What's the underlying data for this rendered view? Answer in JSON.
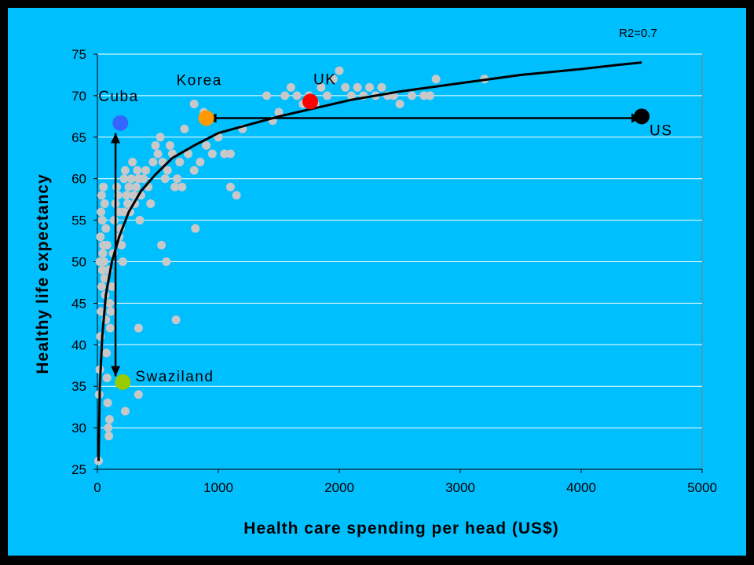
{
  "chart_data": {
    "type": "scatter",
    "title": "",
    "xlabel": "Health care spending per head (US$)",
    "ylabel": "Healthy life expectancy",
    "xlim": [
      0,
      5000
    ],
    "ylim": [
      25,
      75
    ],
    "xticks": [
      0,
      1000,
      2000,
      3000,
      4000,
      5000
    ],
    "yticks": [
      25,
      30,
      35,
      40,
      45,
      50,
      55,
      60,
      65,
      70,
      75
    ],
    "grid": "horizontal",
    "legend": "none",
    "r2_label": "R2=0.7",
    "colors": {
      "background": "#00BFFF",
      "plot_area": "#00BFFF",
      "grid": "#FFFFFF",
      "points": "#C8C8C8",
      "fit_line": "#000000"
    },
    "series": [
      {
        "points": [
          [
            10,
            26
          ],
          [
            15,
            34
          ],
          [
            20,
            37
          ],
          [
            25,
            41
          ],
          [
            30,
            44
          ],
          [
            35,
            47
          ],
          [
            40,
            49
          ],
          [
            45,
            51
          ],
          [
            50,
            52
          ],
          [
            55,
            50
          ],
          [
            60,
            48
          ],
          [
            65,
            46
          ],
          [
            70,
            43
          ],
          [
            75,
            39
          ],
          [
            80,
            36
          ],
          [
            85,
            33
          ],
          [
            90,
            30
          ],
          [
            95,
            29
          ],
          [
            100,
            31
          ],
          [
            105,
            42
          ],
          [
            20,
            50
          ],
          [
            25,
            53
          ],
          [
            30,
            56
          ],
          [
            35,
            58
          ],
          [
            40,
            55
          ],
          [
            50,
            59
          ],
          [
            60,
            57
          ],
          [
            70,
            54
          ],
          [
            80,
            52
          ],
          [
            90,
            49
          ],
          [
            100,
            45
          ],
          [
            110,
            44
          ],
          [
            120,
            47
          ],
          [
            130,
            51
          ],
          [
            140,
            55
          ],
          [
            150,
            57
          ],
          [
            160,
            59
          ],
          [
            170,
            58
          ],
          [
            180,
            56
          ],
          [
            190,
            54
          ],
          [
            200,
            52
          ],
          [
            210,
            50
          ],
          [
            220,
            60
          ],
          [
            230,
            61
          ],
          [
            240,
            58
          ],
          [
            250,
            57
          ],
          [
            260,
            59
          ],
          [
            270,
            56
          ],
          [
            280,
            60
          ],
          [
            290,
            62
          ],
          [
            300,
            58
          ],
          [
            310,
            57
          ],
          [
            320,
            59
          ],
          [
            330,
            61
          ],
          [
            340,
            60
          ],
          [
            350,
            55
          ],
          [
            360,
            58
          ],
          [
            380,
            60
          ],
          [
            400,
            61
          ],
          [
            420,
            59
          ],
          [
            440,
            57
          ],
          [
            460,
            62
          ],
          [
            480,
            64
          ],
          [
            500,
            63
          ],
          [
            520,
            65
          ],
          [
            540,
            62
          ],
          [
            560,
            60
          ],
          [
            580,
            61
          ],
          [
            600,
            64
          ],
          [
            620,
            63
          ],
          [
            640,
            59
          ],
          [
            660,
            60
          ],
          [
            680,
            62
          ],
          [
            700,
            59
          ],
          [
            720,
            66
          ],
          [
            750,
            63
          ],
          [
            800,
            61
          ],
          [
            850,
            62
          ],
          [
            900,
            64
          ],
          [
            950,
            63
          ],
          [
            1000,
            65
          ],
          [
            1050,
            63
          ],
          [
            1100,
            59
          ],
          [
            1150,
            58
          ],
          [
            1200,
            66
          ],
          [
            1400,
            70
          ],
          [
            1450,
            67
          ],
          [
            1500,
            68
          ],
          [
            1550,
            70
          ],
          [
            1600,
            71
          ],
          [
            1650,
            70
          ],
          [
            1700,
            69
          ],
          [
            1750,
            70
          ],
          [
            1800,
            69
          ],
          [
            1850,
            71
          ],
          [
            1900,
            70
          ],
          [
            1950,
            72
          ],
          [
            2000,
            73
          ],
          [
            2050,
            71
          ],
          [
            2100,
            70
          ],
          [
            2150,
            71
          ],
          [
            2200,
            70
          ],
          [
            2250,
            71
          ],
          [
            2300,
            70
          ],
          [
            2350,
            71
          ],
          [
            2400,
            70
          ],
          [
            2450,
            70
          ],
          [
            2500,
            69
          ],
          [
            2600,
            70
          ],
          [
            2700,
            70
          ],
          [
            2750,
            70
          ],
          [
            2800,
            72
          ],
          [
            3200,
            72
          ],
          [
            800,
            69
          ],
          [
            880,
            68
          ],
          [
            1100,
            63
          ],
          [
            570,
            50
          ],
          [
            650,
            43
          ],
          [
            340,
            42
          ],
          [
            230,
            32
          ],
          [
            340,
            34
          ],
          [
            530,
            52
          ],
          [
            810,
            54
          ],
          [
            180,
            53
          ],
          [
            220,
            56
          ]
        ]
      }
    ],
    "fit_curve": [
      [
        10,
        26
      ],
      [
        20,
        35
      ],
      [
        40,
        41
      ],
      [
        70,
        46
      ],
      [
        120,
        50
      ],
      [
        180,
        53
      ],
      [
        260,
        56
      ],
      [
        360,
        58.5
      ],
      [
        480,
        60.5
      ],
      [
        620,
        62.5
      ],
      [
        800,
        64
      ],
      [
        1000,
        65.5
      ],
      [
        1250,
        66.5
      ],
      [
        1500,
        67.5
      ],
      [
        1800,
        68.5
      ],
      [
        2100,
        69.5
      ],
      [
        2500,
        70.5
      ],
      [
        3000,
        71.5
      ],
      [
        3500,
        72.5
      ],
      [
        4000,
        73.2
      ],
      [
        4300,
        73.7
      ],
      [
        4500,
        74
      ]
    ],
    "highlighted": [
      {
        "label": "Cuba",
        "x": 190,
        "y": 66.7,
        "color": "#3366FF"
      },
      {
        "label": "Korea",
        "x": 900,
        "y": 67.3,
        "color": "#FF9900"
      },
      {
        "label": "UK",
        "x": 1760,
        "y": 69.3,
        "color": "#FF0000"
      },
      {
        "label": "US",
        "x": 4500,
        "y": 67.5,
        "color": "#000000"
      },
      {
        "label": "Swaziland",
        "x": 210,
        "y": 35.5,
        "color": "#99CC00"
      }
    ],
    "arrows": [
      {
        "from": [
          900,
          67.3
        ],
        "to": [
          4500,
          67.3
        ],
        "double": true
      },
      {
        "from": [
          150,
          65.5
        ],
        "to": [
          150,
          36.2
        ],
        "double": true
      }
    ]
  }
}
